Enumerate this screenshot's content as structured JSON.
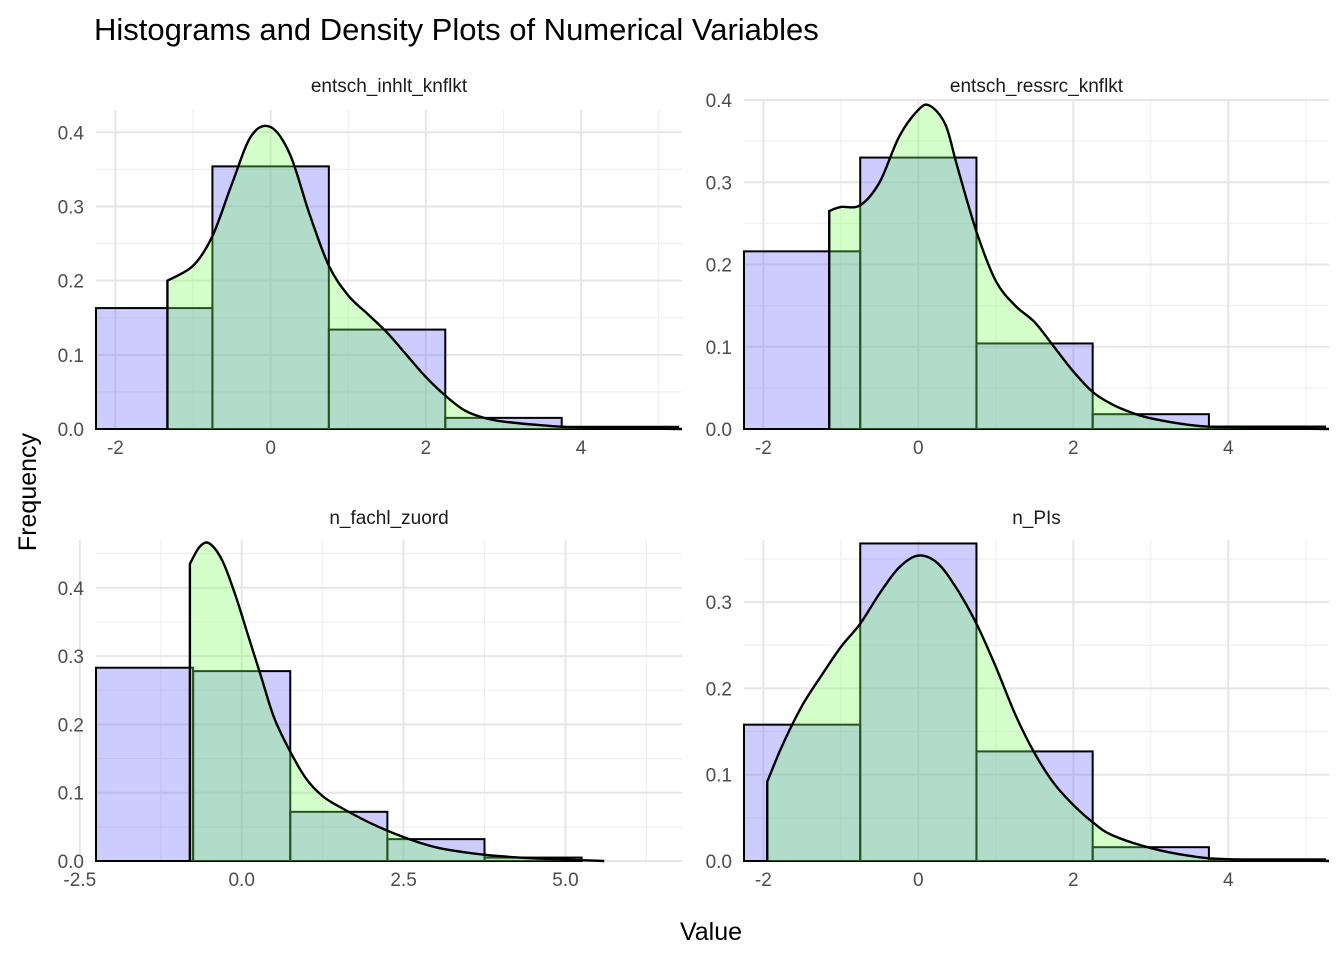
{
  "title": "Histograms and Density Plots of Numerical Variables",
  "xlabel": "Value",
  "ylabel": "Frequency",
  "colors": {
    "histogram_fill": "#6e6eff",
    "density_fill": "#78ff5a",
    "outline": "#000000"
  },
  "chart_data": [
    {
      "type": "bar",
      "panel": "entsch_inhlt_knflkt",
      "bin_width": 1.5,
      "bin_centers": [
        -1.5,
        0,
        1.5,
        3,
        4.5
      ],
      "values": [
        0.163,
        0.354,
        0.134,
        0.015,
        0.003
      ],
      "density": {
        "x": [
          -1.33,
          -1.0,
          -0.75,
          -0.5,
          -0.25,
          0,
          0.25,
          0.5,
          0.75,
          1.0,
          1.25,
          1.5,
          1.75,
          2.0,
          2.25,
          2.5,
          2.75,
          3.0,
          3.5,
          4.0,
          5.3
        ],
        "y": [
          0.2,
          0.22,
          0.26,
          0.33,
          0.395,
          0.407,
          0.37,
          0.29,
          0.22,
          0.18,
          0.155,
          0.13,
          0.1,
          0.07,
          0.045,
          0.025,
          0.015,
          0.01,
          0.005,
          0.002,
          0.0
        ]
      },
      "xlim": [
        -2.25,
        5.3
      ],
      "ylim": [
        0,
        0.43
      ],
      "xticks": [
        -2,
        0,
        2,
        4
      ],
      "xtick_labels": [
        "-2",
        "0",
        "2",
        "4"
      ],
      "yticks": [
        0,
        0.1,
        0.2,
        0.3,
        0.4
      ],
      "ytick_labels": [
        "0.0",
        "0.1",
        "0.2",
        "0.3",
        "0.4"
      ]
    },
    {
      "type": "bar",
      "panel": "entsch_ressrc_knflkt",
      "bin_width": 1.5,
      "bin_centers": [
        -1.5,
        0,
        1.5,
        3,
        4.5
      ],
      "values": [
        0.216,
        0.33,
        0.104,
        0.018,
        0.003
      ],
      "density": {
        "x": [
          -1.15,
          -1.0,
          -0.75,
          -0.5,
          -0.25,
          0,
          0.15,
          0.35,
          0.5,
          0.75,
          1.0,
          1.25,
          1.5,
          1.75,
          2.0,
          2.25,
          2.5,
          2.75,
          3.0,
          3.5,
          4.0,
          5.3
        ],
        "y": [
          0.265,
          0.27,
          0.272,
          0.3,
          0.355,
          0.388,
          0.393,
          0.37,
          0.32,
          0.24,
          0.18,
          0.15,
          0.13,
          0.1,
          0.07,
          0.045,
          0.03,
          0.02,
          0.013,
          0.005,
          0.002,
          0.0
        ]
      },
      "xlim": [
        -2.25,
        5.3
      ],
      "ylim": [
        0,
        0.4
      ],
      "xticks": [
        -2,
        0,
        2,
        4
      ],
      "xtick_labels": [
        "-2",
        "0",
        "2",
        "4"
      ],
      "yticks": [
        0,
        0.1,
        0.2,
        0.3,
        0.4
      ],
      "ytick_labels": [
        "0.0",
        "0.1",
        "0.2",
        "0.3",
        "0.4"
      ]
    },
    {
      "type": "bar",
      "panel": "n_fachl_zuord",
      "bin_width": 1.5,
      "bin_centers": [
        -1.5,
        0,
        1.5,
        3,
        4.5
      ],
      "values": [
        0.283,
        0.278,
        0.072,
        0.032,
        0.005
      ],
      "density": {
        "x": [
          -0.8,
          -0.65,
          -0.5,
          -0.3,
          -0.1,
          0.1,
          0.3,
          0.5,
          0.75,
          1.0,
          1.25,
          1.5,
          2.0,
          2.5,
          3.0,
          3.5,
          4.0,
          4.5,
          5.0,
          5.6
        ],
        "y": [
          0.435,
          0.46,
          0.465,
          0.44,
          0.39,
          0.33,
          0.27,
          0.21,
          0.16,
          0.12,
          0.095,
          0.08,
          0.055,
          0.035,
          0.02,
          0.012,
          0.007,
          0.004,
          0.002,
          0.0
        ]
      },
      "xlim": [
        -2.25,
        6.8
      ],
      "ylim": [
        0,
        0.47
      ],
      "xticks": [
        -2.5,
        0,
        2.5,
        5
      ],
      "xtick_labels": [
        "-2.5",
        "0.0",
        "2.5",
        "5.0"
      ],
      "yticks": [
        0,
        0.1,
        0.2,
        0.3,
        0.4
      ],
      "ytick_labels": [
        "0.0",
        "0.1",
        "0.2",
        "0.3",
        "0.4"
      ]
    },
    {
      "type": "bar",
      "panel": "n_PIs",
      "bin_width": 1.5,
      "bin_centers": [
        -1.5,
        0,
        1.5,
        3,
        4.5
      ],
      "values": [
        0.158,
        0.368,
        0.127,
        0.016,
        0.002
      ],
      "density": {
        "x": [
          -1.95,
          -1.75,
          -1.5,
          -1.25,
          -1.0,
          -0.75,
          -0.5,
          -0.25,
          0,
          0.25,
          0.5,
          0.75,
          1.0,
          1.25,
          1.5,
          1.75,
          2.0,
          2.25,
          2.5,
          3.0,
          3.5,
          4.0,
          5.3
        ],
        "y": [
          0.092,
          0.135,
          0.18,
          0.215,
          0.248,
          0.275,
          0.31,
          0.34,
          0.354,
          0.345,
          0.315,
          0.275,
          0.225,
          0.17,
          0.125,
          0.09,
          0.065,
          0.045,
          0.03,
          0.015,
          0.006,
          0.002,
          0.0
        ]
      },
      "xlim": [
        -2.25,
        5.3
      ],
      "ylim": [
        0,
        0.372
      ],
      "xticks": [
        -2,
        0,
        2,
        4
      ],
      "xtick_labels": [
        "-2",
        "0",
        "2",
        "4"
      ],
      "yticks": [
        0,
        0.1,
        0.2,
        0.3
      ],
      "ytick_labels": [
        "0.0",
        "0.1",
        "0.2",
        "0.3"
      ]
    }
  ]
}
